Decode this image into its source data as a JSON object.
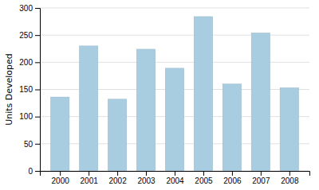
{
  "chart_data": {
    "type": "bar",
    "ylabel": "Units Developed",
    "x": [
      2000,
      2001,
      2002,
      2003,
      2004,
      2005,
      2006,
      2007,
      2008
    ],
    "values": [
      136,
      230,
      132,
      224,
      189,
      284,
      160,
      254,
      153
    ],
    "color": "#a8cce0",
    "xlim": [
      1999.3,
      2008.7
    ],
    "xticks": [
      2000,
      2001,
      2002,
      2003,
      2004,
      2005,
      2006,
      2007,
      2008
    ],
    "ylim": [
      0,
      300
    ],
    "yticks": [
      0,
      50,
      100,
      150,
      200,
      250,
      300
    ],
    "grid": true
  }
}
